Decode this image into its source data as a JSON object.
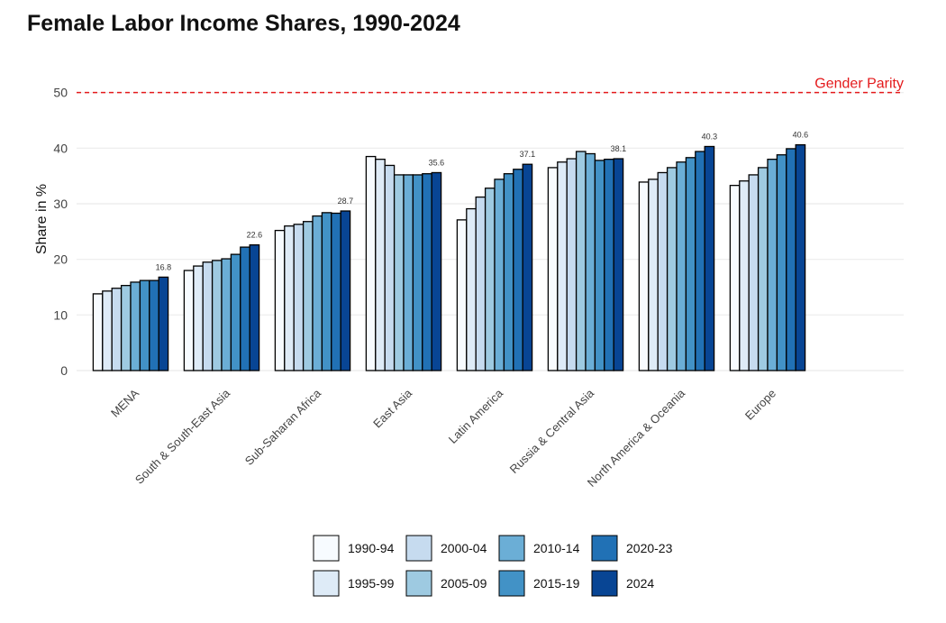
{
  "chart_data": {
    "type": "bar",
    "title": "Female Labor Income Shares, 1990-2024",
    "y_label": "Share in %",
    "categories": [
      "MENA",
      "South & South-East Asia",
      "Sub-Saharan Africa",
      "East Asia",
      "Latin America",
      "Russia & Central Asia",
      "North America & Oceania",
      "Europe"
    ],
    "series": [
      {
        "name": "1990-94",
        "color": "#f7fbff",
        "values": [
          13.8,
          18.0,
          25.2,
          38.5,
          27.1,
          36.5,
          33.9,
          33.3
        ]
      },
      {
        "name": "1995-99",
        "color": "#deebf7",
        "values": [
          14.3,
          18.8,
          26.0,
          38.0,
          29.1,
          37.5,
          34.4,
          34.1
        ]
      },
      {
        "name": "2000-04",
        "color": "#c6dbef",
        "values": [
          14.8,
          19.5,
          26.3,
          36.9,
          31.2,
          38.1,
          35.6,
          35.2
        ]
      },
      {
        "name": "2005-09",
        "color": "#9ecae1",
        "values": [
          15.3,
          19.8,
          26.8,
          35.2,
          32.8,
          39.4,
          36.5,
          36.5
        ]
      },
      {
        "name": "2010-14",
        "color": "#6baed6",
        "values": [
          15.9,
          20.1,
          27.8,
          35.2,
          34.4,
          39.0,
          37.5,
          38.0
        ]
      },
      {
        "name": "2015-19",
        "color": "#4292c6",
        "values": [
          16.2,
          20.9,
          28.4,
          35.2,
          35.4,
          37.8,
          38.3,
          38.8
        ]
      },
      {
        "name": "2020-23",
        "color": "#2171b5",
        "values": [
          16.2,
          22.2,
          28.3,
          35.4,
          36.2,
          38.0,
          39.4,
          39.9
        ]
      },
      {
        "name": "2024",
        "color": "#084594",
        "values": [
          16.8,
          22.6,
          28.7,
          35.6,
          37.1,
          38.1,
          40.3,
          40.6
        ],
        "labeled": true
      }
    ],
    "ylim": [
      0,
      54
    ],
    "yticks": [
      0,
      10,
      20,
      30,
      40,
      50
    ],
    "grid": true,
    "reference_line": {
      "value": 50,
      "label": "Gender Parity",
      "color": "#e41a1c"
    },
    "legend": "bottom"
  }
}
